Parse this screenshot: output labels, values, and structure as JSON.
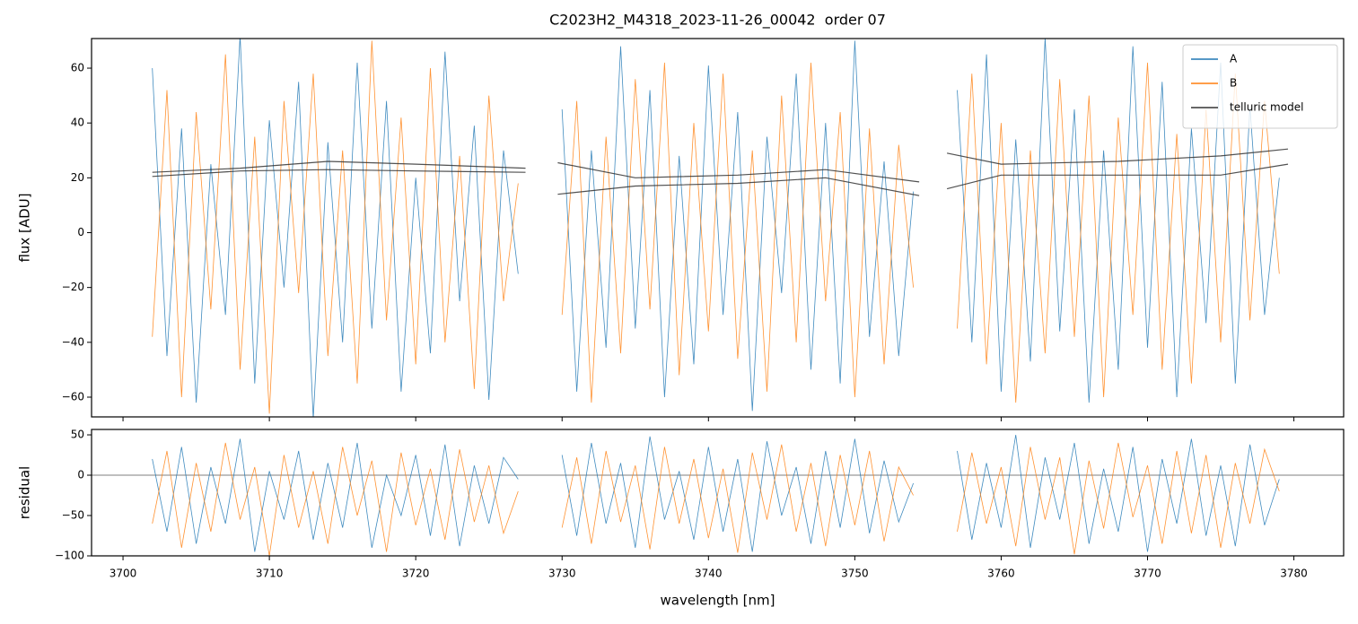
{
  "chart_data": [
    {
      "type": "line",
      "title": "C2023H2_M4318_2023-11-26_00042  order 07",
      "ylabel": "flux [ADU]",
      "legend": "upper right",
      "xlim": [
        3697.85,
        3783.4
      ],
      "xticks": [
        3700,
        3710,
        3720,
        3730,
        3740,
        3750,
        3760,
        3770,
        3780
      ],
      "ylim": [
        -67.2,
        70.8
      ],
      "yticks": [
        {
          "value": -60,
          "label": "−60"
        },
        {
          "value": -40,
          "label": "−40"
        },
        {
          "value": -20,
          "label": "−20"
        },
        0,
        20,
        40,
        60
      ],
      "x": [
        3702,
        3703,
        3704,
        3705,
        3706,
        3707,
        3708,
        3709,
        3710,
        3711,
        3712,
        3713,
        3714,
        3715,
        3716,
        3717,
        3718,
        3719,
        3720,
        3721,
        3722,
        3723,
        3724,
        3725,
        3726,
        3727,
        3728.5,
        3730,
        3731,
        3732,
        3733,
        3734,
        3735,
        3736,
        3737,
        3738,
        3739,
        3740,
        3741,
        3742,
        3743,
        3744,
        3745,
        3746,
        3747,
        3748,
        3749,
        3750,
        3751,
        3752,
        3753,
        3754,
        3755.5,
        3757,
        3758,
        3759,
        3760,
        3761,
        3762,
        3763,
        3764,
        3765,
        3766,
        3767,
        3768,
        3769,
        3770,
        3771,
        3772,
        3773,
        3774,
        3775,
        3776,
        3777,
        3778,
        3779
      ],
      "series": [
        {
          "name": "A",
          "color": "#1f77b4",
          "values": [
            60,
            -45,
            38,
            -62,
            25,
            -30,
            72,
            -55,
            41,
            -20,
            55,
            -68,
            33,
            -40,
            62,
            -35,
            48,
            -58,
            20,
            -44,
            66,
            -25,
            39,
            -61,
            30,
            -15,
            null,
            45,
            -58,
            30,
            -42,
            68,
            -35,
            52,
            -60,
            28,
            -48,
            61,
            -30,
            44,
            -65,
            35,
            -22,
            58,
            -50,
            40,
            -55,
            70,
            -38,
            26,
            -45,
            15,
            null,
            52,
            -40,
            65,
            -58,
            34,
            -47,
            71,
            -36,
            45,
            -62,
            30,
            -50,
            68,
            -42,
            55,
            -60,
            38,
            -33,
            62,
            -55,
            46,
            -30,
            20
          ]
        },
        {
          "name": "B",
          "color": "#ff7f0e",
          "values": [
            -38,
            52,
            -60,
            44,
            -28,
            65,
            -50,
            35,
            -66,
            48,
            -22,
            58,
            -45,
            30,
            -55,
            70,
            -32,
            42,
            -48,
            60,
            -40,
            28,
            -57,
            50,
            -25,
            18,
            null,
            -30,
            48,
            -62,
            35,
            -44,
            56,
            -28,
            62,
            -52,
            40,
            -36,
            58,
            -46,
            30,
            -58,
            50,
            -40,
            62,
            -25,
            44,
            -60,
            38,
            -48,
            32,
            -20,
            null,
            -35,
            58,
            -48,
            40,
            -62,
            30,
            -44,
            56,
            -38,
            50,
            -60,
            42,
            -30,
            62,
            -50,
            36,
            -55,
            45,
            -40,
            58,
            -32,
            48,
            -15
          ]
        },
        {
          "name": "telluric model",
          "color": "#333333",
          "x": [
            3702,
            3708,
            3714,
            3720,
            3727.5,
            3728.6,
            3729.7,
            3735,
            3742,
            3748,
            3754.4,
            3755.4,
            3756.3,
            3760,
            3768,
            3775,
            3779.6
          ],
          "values": [
            22,
            23.5,
            26,
            25,
            23.5,
            null,
            25.5,
            20,
            21,
            23,
            18.5,
            null,
            29,
            25,
            26,
            28,
            30.5
          ]
        },
        {
          "color": "#333333",
          "x": [
            3702,
            3708,
            3714,
            3720,
            3727.5,
            3728.6,
            3729.7,
            3735,
            3742,
            3748,
            3754.4,
            3755.4,
            3756.3,
            3760,
            3768,
            3775,
            3779.6
          ],
          "values": [
            20.5,
            22.5,
            23,
            22.5,
            22,
            null,
            14,
            17,
            18,
            20,
            13.5,
            null,
            16,
            21,
            21,
            21,
            25
          ]
        }
      ]
    },
    {
      "type": "line",
      "ylabel": "residual",
      "xlabel": "wavelength [nm]",
      "hline": 0,
      "xlim": [
        3697.85,
        3783.4
      ],
      "xticks": [
        3700,
        3710,
        3720,
        3730,
        3740,
        3750,
        3760,
        3770,
        3780
      ],
      "ylim": [
        -100,
        56.7
      ],
      "yticks": [
        {
          "value": -100,
          "label": "−100"
        },
        {
          "value": -50,
          "label": "−50"
        },
        0,
        50
      ],
      "x": [
        3702,
        3703,
        3704,
        3705,
        3706,
        3707,
        3708,
        3709,
        3710,
        3711,
        3712,
        3713,
        3714,
        3715,
        3716,
        3717,
        3718,
        3719,
        3720,
        3721,
        3722,
        3723,
        3724,
        3725,
        3726,
        3727,
        3728.5,
        3730,
        3731,
        3732,
        3733,
        3734,
        3735,
        3736,
        3737,
        3738,
        3739,
        3740,
        3741,
        3742,
        3743,
        3744,
        3745,
        3746,
        3747,
        3748,
        3749,
        3750,
        3751,
        3752,
        3753,
        3754,
        3755.5,
        3757,
        3758,
        3759,
        3760,
        3761,
        3762,
        3763,
        3764,
        3765,
        3766,
        3767,
        3768,
        3769,
        3770,
        3771,
        3772,
        3773,
        3774,
        3775,
        3776,
        3777,
        3778,
        3779
      ],
      "series": [
        {
          "color": "#1f77b4",
          "values": [
            20,
            -70,
            35,
            -85,
            10,
            -60,
            45,
            -95,
            5,
            -55,
            30,
            -80,
            15,
            -65,
            40,
            -90,
            0,
            -50,
            25,
            -75,
            38,
            -88,
            12,
            -60,
            22,
            -5,
            null,
            25,
            -75,
            40,
            -60,
            15,
            -90,
            48,
            -55,
            5,
            -80,
            35,
            -70,
            20,
            -95,
            42,
            -50,
            10,
            -85,
            30,
            -65,
            45,
            -72,
            18,
            -58,
            -10,
            null,
            30,
            -80,
            15,
            -65,
            50,
            -90,
            22,
            -55,
            40,
            -85,
            8,
            -70,
            35,
            -95,
            20,
            -60,
            45,
            -75,
            12,
            -88,
            38,
            -62,
            -5
          ]
        },
        {
          "color": "#ff7f0e",
          "values": [
            -60,
            30,
            -90,
            15,
            -70,
            40,
            -55,
            10,
            -100,
            25,
            -65,
            5,
            -85,
            35,
            -50,
            18,
            -95,
            28,
            -62,
            8,
            -80,
            32,
            -58,
            12,
            -72,
            -20,
            null,
            -65,
            22,
            -85,
            30,
            -58,
            12,
            -92,
            35,
            -60,
            20,
            -78,
            8,
            -96,
            28,
            -55,
            38,
            -70,
            15,
            -88,
            25,
            -62,
            30,
            -82,
            10,
            -25,
            null,
            -70,
            28,
            -60,
            10,
            -88,
            35,
            -55,
            22,
            -98,
            18,
            -66,
            40,
            -52,
            12,
            -85,
            30,
            -72,
            25,
            -90,
            15,
            -60,
            32,
            -20
          ]
        }
      ]
    }
  ]
}
